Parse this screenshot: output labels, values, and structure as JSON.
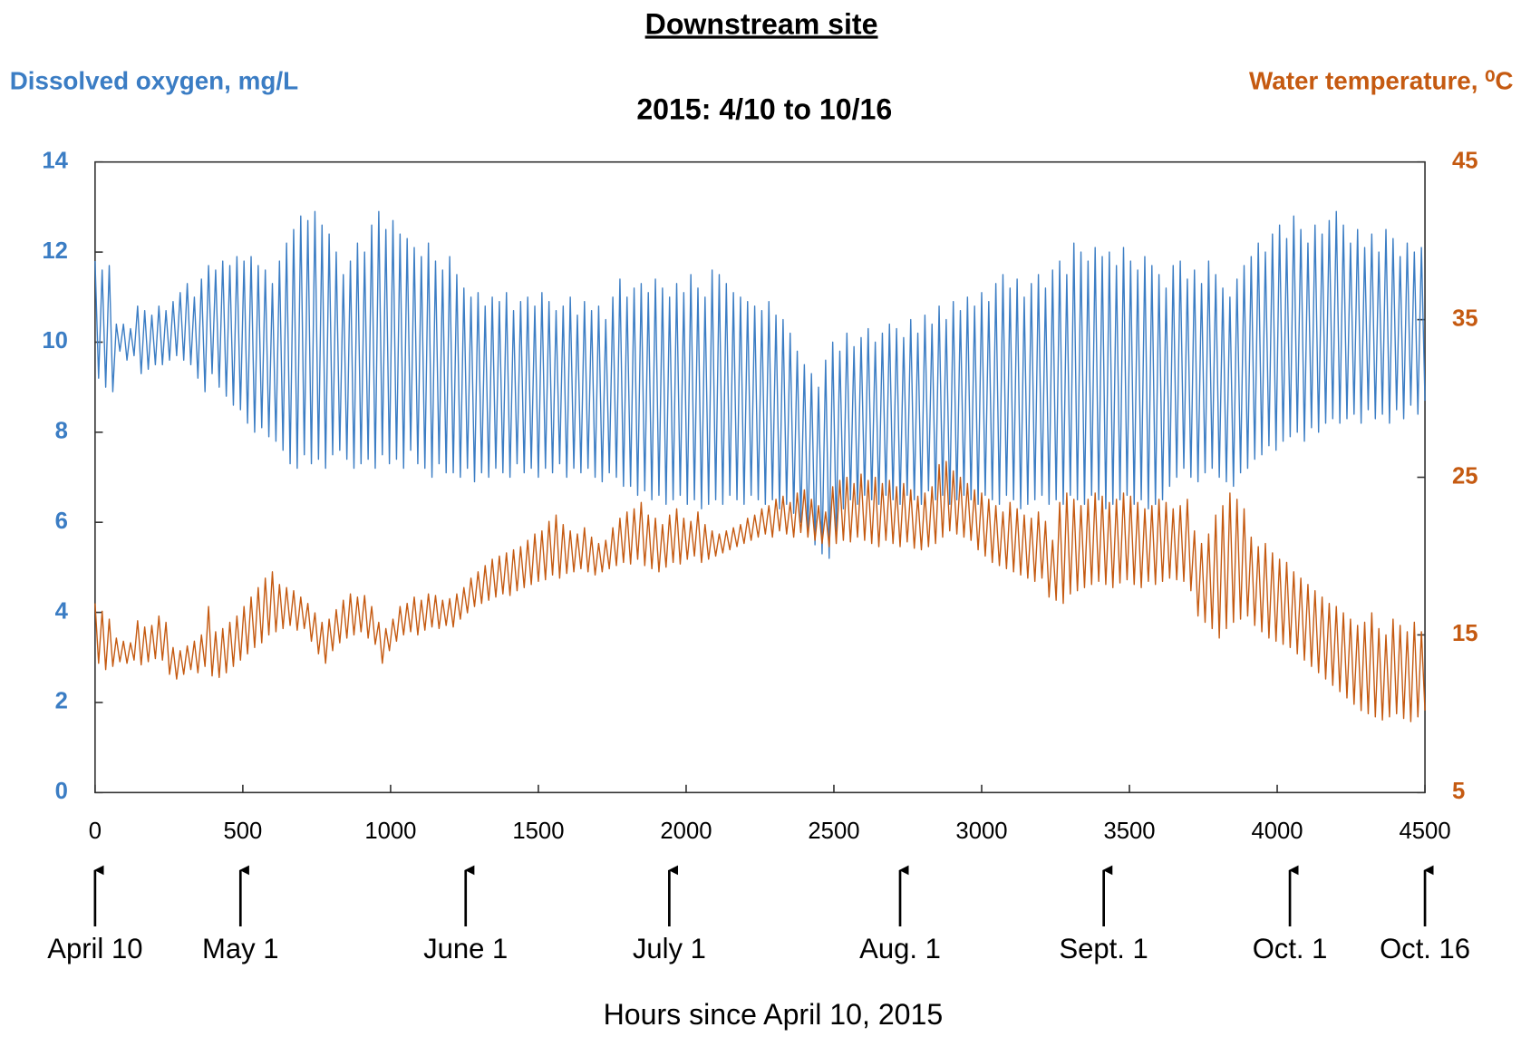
{
  "chart_data": {
    "type": "line",
    "title": "Downstream site",
    "subtitle": "2015: 4/10 to 10/16",
    "ylabel": "Dissolved oxygen, mg/L",
    "y2label": "Water temperature, ⁰C",
    "xlabel": "Hours since April 10, 2015",
    "xlim": [
      0,
      4500
    ],
    "xticks": [
      0,
      500,
      1000,
      1500,
      2000,
      2500,
      3000,
      3500,
      4000,
      4500
    ],
    "ylim": [
      0,
      14
    ],
    "yticks": [
      0,
      2,
      4,
      6,
      8,
      10,
      12,
      14
    ],
    "y2lim": [
      5,
      45
    ],
    "y2ticks": [
      5,
      15,
      25,
      35,
      45
    ],
    "ycolor": "#3b7dc4",
    "y2color": "#c55a11",
    "grid": false,
    "annotations": [
      {
        "label": "April 10",
        "x": 0
      },
      {
        "label": "May 1",
        "x": 492
      },
      {
        "label": "June 1",
        "x": 1254
      },
      {
        "label": "July 1",
        "x": 1943
      },
      {
        "label": "Aug. 1",
        "x": 2724
      },
      {
        "label": "Sept. 1",
        "x": 3413
      },
      {
        "label": "Oct. 1",
        "x": 4043
      },
      {
        "label": "Oct. 16",
        "x": 4500
      }
    ],
    "x": [
      0,
      12,
      24,
      36,
      48,
      60,
      72,
      84,
      96,
      108,
      120,
      132,
      144,
      156,
      168,
      180,
      192,
      204,
      216,
      228,
      240,
      252,
      264,
      276,
      288,
      300,
      312,
      324,
      336,
      348,
      360,
      372,
      384,
      396,
      408,
      420,
      432,
      444,
      456,
      468,
      480,
      492,
      504,
      516,
      528,
      540,
      552,
      564,
      576,
      588,
      600,
      612,
      624,
      636,
      648,
      660,
      672,
      684,
      696,
      708,
      720,
      732,
      744,
      756,
      768,
      780,
      792,
      804,
      816,
      828,
      840,
      852,
      864,
      876,
      888,
      900,
      912,
      924,
      936,
      948,
      960,
      972,
      984,
      996,
      1008,
      1020,
      1032,
      1044,
      1056,
      1068,
      1080,
      1092,
      1104,
      1116,
      1128,
      1140,
      1152,
      1164,
      1176,
      1188,
      1200,
      1212,
      1224,
      1236,
      1248,
      1260,
      1272,
      1284,
      1296,
      1308,
      1320,
      1332,
      1344,
      1356,
      1368,
      1380,
      1392,
      1404,
      1416,
      1428,
      1440,
      1452,
      1464,
      1476,
      1488,
      1500,
      1512,
      1524,
      1536,
      1548,
      1560,
      1572,
      1584,
      1596,
      1608,
      1620,
      1632,
      1644,
      1656,
      1668,
      1680,
      1692,
      1704,
      1716,
      1728,
      1740,
      1752,
      1764,
      1776,
      1788,
      1800,
      1812,
      1824,
      1836,
      1848,
      1860,
      1872,
      1884,
      1896,
      1908,
      1920,
      1932,
      1944,
      1956,
      1968,
      1980,
      1992,
      2004,
      2016,
      2028,
      2040,
      2052,
      2064,
      2076,
      2088,
      2100,
      2112,
      2124,
      2136,
      2148,
      2160,
      2172,
      2184,
      2196,
      2208,
      2220,
      2232,
      2244,
      2256,
      2268,
      2280,
      2292,
      2304,
      2316,
      2328,
      2340,
      2352,
      2364,
      2376,
      2388,
      2400,
      2412,
      2424,
      2436,
      2448,
      2460,
      2472,
      2484,
      2496,
      2508,
      2520,
      2532,
      2544,
      2556,
      2568,
      2580,
      2592,
      2604,
      2616,
      2628,
      2640,
      2652,
      2664,
      2676,
      2688,
      2700,
      2712,
      2724,
      2736,
      2748,
      2760,
      2772,
      2784,
      2796,
      2808,
      2820,
      2832,
      2844,
      2856,
      2868,
      2880,
      2892,
      2904,
      2916,
      2928,
      2940,
      2952,
      2964,
      2976,
      2988,
      3000,
      3012,
      3024,
      3036,
      3048,
      3060,
      3072,
      3084,
      3096,
      3108,
      3120,
      3132,
      3144,
      3156,
      3168,
      3180,
      3192,
      3204,
      3216,
      3228,
      3240,
      3252,
      3264,
      3276,
      3288,
      3300,
      3312,
      3324,
      3336,
      3348,
      3360,
      3372,
      3384,
      3396,
      3408,
      3420,
      3432,
      3444,
      3456,
      3468,
      3480,
      3492,
      3504,
      3516,
      3528,
      3540,
      3552,
      3564,
      3576,
      3588,
      3600,
      3612,
      3624,
      3636,
      3648,
      3660,
      3672,
      3684,
      3696,
      3708,
      3720,
      3732,
      3744,
      3756,
      3768,
      3780,
      3792,
      3804,
      3816,
      3828,
      3840,
      3852,
      3864,
      3876,
      3888,
      3900,
      3912,
      3924,
      3936,
      3948,
      3960,
      3972,
      3984,
      3996,
      4008,
      4020,
      4032,
      4044,
      4056,
      4068,
      4080,
      4092,
      4104,
      4116,
      4128,
      4140,
      4152,
      4164,
      4176,
      4188,
      4200,
      4212,
      4224,
      4236,
      4248,
      4260,
      4272,
      4284,
      4296,
      4308,
      4320,
      4332,
      4344,
      4356,
      4368,
      4380,
      4392,
      4404,
      4416,
      4428,
      4440,
      4452,
      4464,
      4476,
      4488,
      4500
    ],
    "series": [
      {
        "color": "#3b7dc4",
        "values": [
          11.8,
          9.2,
          11.6,
          9.0,
          11.7,
          8.9,
          10.4,
          9.8,
          10.4,
          9.6,
          10.3,
          9.7,
          10.8,
          9.3,
          10.7,
          9.4,
          10.6,
          9.5,
          10.8,
          9.5,
          10.7,
          9.6,
          10.9,
          9.7,
          11.1,
          9.6,
          11.3,
          9.5,
          11.0,
          9.2,
          11.4,
          8.9,
          11.7,
          9.3,
          11.6,
          9.0,
          11.8,
          8.8,
          11.7,
          8.6,
          11.9,
          8.5,
          11.8,
          8.2,
          11.9,
          8.0,
          11.7,
          8.1,
          11.6,
          7.9,
          11.3,
          7.8,
          11.8,
          7.6,
          12.2,
          7.3,
          12.5,
          7.2,
          12.8,
          7.5,
          12.7,
          7.3,
          12.9,
          7.4,
          12.6,
          7.2,
          12.4,
          7.5,
          12.0,
          7.6,
          11.5,
          7.4,
          11.8,
          7.2,
          12.2,
          7.3,
          12.0,
          7.4,
          12.6,
          7.2,
          12.9,
          7.5,
          12.5,
          7.3,
          12.7,
          7.4,
          12.4,
          7.2,
          12.3,
          7.6,
          12.1,
          7.3,
          11.9,
          7.2,
          12.2,
          7.0,
          11.8,
          7.3,
          11.6,
          7.1,
          11.9,
          7.1,
          11.5,
          7.0,
          11.2,
          7.2,
          11.0,
          6.9,
          11.1,
          7.1,
          10.8,
          7.0,
          11.0,
          7.2,
          10.9,
          7.1,
          11.1,
          7.0,
          10.7,
          7.3,
          10.9,
          7.1,
          11.0,
          7.2,
          10.8,
          7.0,
          11.1,
          7.2,
          10.9,
          7.1,
          10.7,
          7.3,
          10.8,
          7.0,
          11.0,
          7.2,
          10.6,
          7.1,
          10.9,
          7.2,
          10.7,
          7.0,
          10.8,
          6.9,
          10.5,
          7.1,
          11.0,
          7.0,
          11.4,
          6.8,
          11.0,
          6.8,
          11.2,
          6.6,
          11.3,
          6.7,
          11.1,
          6.5,
          11.4,
          6.6,
          11.2,
          6.4,
          11.0,
          6.5,
          11.3,
          6.6,
          11.1,
          6.4,
          11.5,
          6.5,
          11.2,
          6.3,
          11.0,
          6.4,
          11.6,
          6.5,
          11.5,
          6.4,
          11.3,
          6.6,
          11.1,
          6.5,
          11.0,
          6.4,
          10.9,
          6.6,
          10.8,
          6.5,
          10.7,
          6.4,
          10.9,
          6.5,
          10.6,
          6.3,
          10.5,
          6.4,
          10.2,
          6.2,
          9.8,
          6.0,
          9.5,
          5.7,
          9.3,
          5.5,
          9.0,
          5.3,
          9.6,
          5.2,
          10.0,
          5.8,
          9.8,
          6.3,
          10.2,
          6.5,
          9.9,
          6.4,
          10.1,
          6.6,
          10.3,
          6.5,
          10.0,
          6.4,
          10.2,
          6.6,
          10.4,
          6.5,
          10.3,
          6.4,
          10.1,
          6.6,
          10.5,
          6.5,
          10.2,
          6.4,
          10.6,
          6.7,
          10.4,
          6.5,
          10.8,
          6.6,
          10.5,
          6.4,
          10.9,
          6.5,
          10.7,
          6.6,
          11.0,
          6.5,
          10.8,
          6.4,
          11.1,
          6.6,
          10.9,
          6.5,
          11.3,
          6.4,
          11.5,
          6.6,
          11.2,
          6.5,
          11.4,
          6.3,
          11.0,
          6.4,
          11.3,
          6.5,
          11.5,
          6.6,
          11.2,
          6.4,
          11.6,
          6.5,
          11.8,
          6.4,
          11.5,
          6.6,
          12.2,
          6.5,
          12.0,
          6.4,
          11.8,
          6.6,
          12.1,
          6.5,
          11.9,
          6.3,
          12.0,
          6.4,
          11.7,
          6.5,
          12.1,
          6.6,
          11.8,
          6.4,
          11.6,
          6.5,
          11.9,
          6.3,
          11.7,
          6.4,
          11.5,
          6.5,
          11.2,
          6.8,
          11.7,
          7.0,
          11.8,
          7.2,
          11.4,
          7.0,
          11.6,
          6.9,
          11.3,
          7.1,
          11.8,
          7.2,
          11.5,
          7.0,
          11.2,
          6.9,
          11.0,
          6.8,
          11.4,
          7.1,
          11.7,
          7.2,
          11.9,
          7.4,
          12.2,
          7.5,
          12.0,
          7.7,
          12.4,
          7.6,
          12.6,
          7.8,
          12.3,
          7.9,
          12.8,
          8.0,
          12.5,
          7.8,
          12.2,
          8.1,
          12.6,
          8.0,
          12.4,
          8.2,
          12.7,
          8.3,
          12.9,
          8.2,
          12.6,
          8.3,
          12.2,
          8.4,
          12.5,
          8.2,
          12.1,
          8.5,
          12.4,
          8.3,
          12.0,
          8.4,
          12.5,
          8.2,
          12.3,
          8.5,
          11.9,
          8.3,
          12.2,
          8.6,
          12.0,
          8.4,
          12.1,
          8.7
        ]
      },
      {
        "color": "#c55a11",
        "axis": "y2",
        "values": [
          17.0,
          13.2,
          16.5,
          12.8,
          16.0,
          13.0,
          14.8,
          13.3,
          14.6,
          13.2,
          14.5,
          13.4,
          15.9,
          13.1,
          15.5,
          13.3,
          15.6,
          13.5,
          16.2,
          13.4,
          15.8,
          12.5,
          14.2,
          12.2,
          14.0,
          12.5,
          14.3,
          12.8,
          14.6,
          12.6,
          15.0,
          13.0,
          16.8,
          12.4,
          15.2,
          12.3,
          15.4,
          12.6,
          15.8,
          13.0,
          16.2,
          13.4,
          16.8,
          13.8,
          17.4,
          14.2,
          18.0,
          14.5,
          18.6,
          15.0,
          19.0,
          15.2,
          18.2,
          15.4,
          18.0,
          15.6,
          17.8,
          15.3,
          17.4,
          15.4,
          17.0,
          14.6,
          16.4,
          13.8,
          15.8,
          13.2,
          16.0,
          14.0,
          16.6,
          14.5,
          17.2,
          14.8,
          17.6,
          15.0,
          17.4,
          15.2,
          17.5,
          14.8,
          16.8,
          14.4,
          15.8,
          13.2,
          15.4,
          14.0,
          16.0,
          14.6,
          16.8,
          15.0,
          17.0,
          15.2,
          17.4,
          15.0,
          17.2,
          15.3,
          17.6,
          15.5,
          17.5,
          15.4,
          17.2,
          15.6,
          17.3,
          15.5,
          17.6,
          16.0,
          18.0,
          16.4,
          18.6,
          16.8,
          19.0,
          17.0,
          19.4,
          17.2,
          19.8,
          17.4,
          20.0,
          17.6,
          20.2,
          17.5,
          20.4,
          17.8,
          20.6,
          18.0,
          21.0,
          18.2,
          21.4,
          18.4,
          21.6,
          18.5,
          22.2,
          18.8,
          22.6,
          18.6,
          22.0,
          18.9,
          21.6,
          19.0,
          21.4,
          19.2,
          21.8,
          19.0,
          21.2,
          18.8,
          20.8,
          19.0,
          21.0,
          19.2,
          21.8,
          19.4,
          22.4,
          19.6,
          22.8,
          19.5,
          23.0,
          19.8,
          23.4,
          19.4,
          22.6,
          19.2,
          22.4,
          19.0,
          22.0,
          19.3,
          22.6,
          19.6,
          23.0,
          19.5,
          22.4,
          19.8,
          22.2,
          20.0,
          22.8,
          19.6,
          22.0,
          19.8,
          21.6,
          20.0,
          21.4,
          20.2,
          21.6,
          20.4,
          21.8,
          20.6,
          22.0,
          20.8,
          22.4,
          21.0,
          22.6,
          21.2,
          23.0,
          21.4,
          23.2,
          21.2,
          23.6,
          21.6,
          23.8,
          21.4,
          23.4,
          21.2,
          24.0,
          21.5,
          24.2,
          21.2,
          23.6,
          21.0,
          23.2,
          20.8,
          22.8,
          20.6,
          24.4,
          20.8,
          24.8,
          21.0,
          25.0,
          20.9,
          24.6,
          21.2,
          25.2,
          21.0,
          24.8,
          20.8,
          25.0,
          20.6,
          24.6,
          21.0,
          24.8,
          20.8,
          24.4,
          20.6,
          24.6,
          20.9,
          24.2,
          20.5,
          23.8,
          20.4,
          24.0,
          20.6,
          24.4,
          20.8,
          25.8,
          21.2,
          26.0,
          21.6,
          25.4,
          21.4,
          25.0,
          21.2,
          24.6,
          21.0,
          24.2,
          20.4,
          24.0,
          20.0,
          23.6,
          19.6,
          23.2,
          19.4,
          22.8,
          19.2,
          23.4,
          19.0,
          23.0,
          18.8,
          22.6,
          18.6,
          22.4,
          18.4,
          22.8,
          18.6,
          22.2,
          17.4,
          21.0,
          17.2,
          23.4,
          17.0,
          24.0,
          17.6,
          23.6,
          17.8,
          23.2,
          18.0,
          23.6,
          18.2,
          24.0,
          18.4,
          23.8,
          18.2,
          23.4,
          18.0,
          23.6,
          18.3,
          24.0,
          18.5,
          23.8,
          18.2,
          23.4,
          18.0,
          23.0,
          18.4,
          23.2,
          18.2,
          23.6,
          18.4,
          23.4,
          18.6,
          23.0,
          18.5,
          23.2,
          18.4,
          23.6,
          17.8,
          21.6,
          16.2,
          20.8,
          15.8,
          21.4,
          15.4,
          22.6,
          14.8,
          23.2,
          15.4,
          24.0,
          15.8,
          23.6,
          16.0,
          23.0,
          16.2,
          21.2,
          15.6,
          20.6,
          15.2,
          20.8,
          14.8,
          20.2,
          14.6,
          19.8,
          14.4,
          19.6,
          14.2,
          19.0,
          13.8,
          18.6,
          13.4,
          18.2,
          13.0,
          17.8,
          12.6,
          17.4,
          12.2,
          17.0,
          11.8,
          16.8,
          11.4,
          16.4,
          11.0,
          16.0,
          10.6,
          15.6,
          10.2,
          15.8,
          10.0,
          16.4,
          9.8,
          15.4,
          9.6,
          15.0,
          9.8,
          16.0,
          10.0,
          15.6,
          9.7,
          15.2,
          9.5,
          15.8,
          9.8,
          15.2,
          10.2
        ]
      }
    ]
  }
}
